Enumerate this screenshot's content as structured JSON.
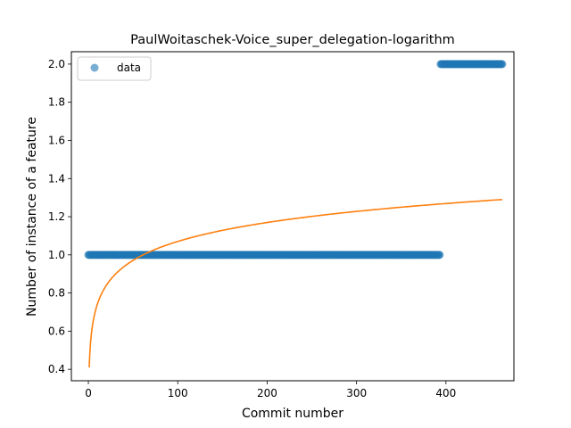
{
  "chart_data": {
    "type": "scatter",
    "title": "PaulWoitaschek-Voice_super_delegation-logarithm",
    "xlabel": "Commit number",
    "ylabel": "Number of instance of a feature",
    "xlim": [
      -19,
      476
    ],
    "ylim": [
      0.34,
      2.065
    ],
    "x_ticks": [
      0,
      100,
      200,
      300,
      400
    ],
    "y_ticks": [
      0.4,
      0.6,
      0.8,
      1.0,
      1.2,
      1.4,
      1.6,
      1.8,
      2.0
    ],
    "x_tick_labels": [
      "0",
      "100",
      "200",
      "300",
      "400"
    ],
    "y_tick_labels": [
      "0.4",
      "0.6",
      "0.8",
      "1.0",
      "1.2",
      "1.4",
      "1.6",
      "1.8",
      "2.0"
    ],
    "grid": false,
    "legend": {
      "position": "top-left",
      "entries": [
        "data"
      ]
    },
    "series": [
      {
        "name": "data",
        "kind": "scatter",
        "color": "#1f77b4",
        "segments": [
          {
            "x_start": 0,
            "x_end": 393,
            "y": 1.0
          },
          {
            "x_start": 394,
            "x_end": 463,
            "y": 2.0
          }
        ]
      },
      {
        "kind": "line",
        "color": "#ff7f0e",
        "model": "logarithmic",
        "x_range": [
          1,
          463
        ],
        "points": [
          [
            1,
            0.41
          ],
          [
            463,
            1.29
          ]
        ]
      }
    ]
  }
}
